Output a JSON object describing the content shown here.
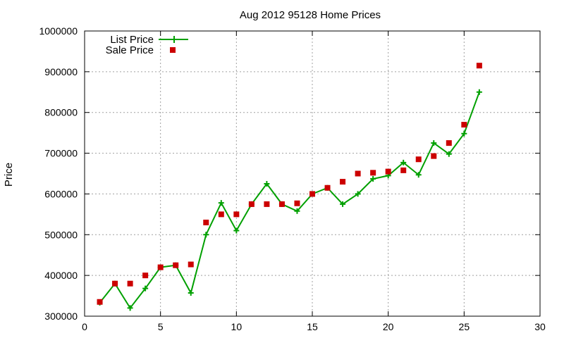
{
  "chart_data": {
    "type": "line",
    "title": "Aug 2012 95128 Home Prices",
    "xlabel": "",
    "ylabel": "Price",
    "xlim": [
      0,
      30
    ],
    "ylim": [
      300000,
      1000000
    ],
    "xticks": [
      0,
      5,
      10,
      15,
      20,
      25,
      30
    ],
    "yticks": [
      300000,
      400000,
      500000,
      600000,
      700000,
      800000,
      900000,
      1000000
    ],
    "grid": true,
    "legend_position": "top-left",
    "series": [
      {
        "name": "List Price",
        "style": "line-cross",
        "color": "#00a000",
        "x": [
          1,
          2,
          3,
          4,
          5,
          6,
          7,
          8,
          9,
          10,
          11,
          12,
          13,
          14,
          15,
          16,
          17,
          18,
          19,
          20,
          21,
          22,
          23,
          24,
          25,
          26
        ],
        "y": [
          333000,
          380000,
          320000,
          368000,
          420000,
          425000,
          357000,
          500000,
          578000,
          510000,
          575000,
          625000,
          575000,
          558000,
          600000,
          615000,
          575000,
          600000,
          637000,
          645000,
          677000,
          647000,
          725000,
          698000,
          748000,
          850000
        ]
      },
      {
        "name": "Sale Price",
        "style": "square-points",
        "color": "#cc0000",
        "x": [
          1,
          2,
          3,
          4,
          5,
          6,
          7,
          8,
          9,
          10,
          11,
          12,
          13,
          14,
          15,
          16,
          17,
          18,
          19,
          20,
          21,
          22,
          23,
          24,
          25,
          26
        ],
        "y": [
          335000,
          380000,
          380000,
          400000,
          420000,
          425000,
          427000,
          530000,
          550000,
          550000,
          575000,
          575000,
          575000,
          577000,
          600000,
          615000,
          630000,
          650000,
          652000,
          655000,
          658000,
          685000,
          693000,
          725000,
          770000,
          915000
        ]
      }
    ]
  }
}
